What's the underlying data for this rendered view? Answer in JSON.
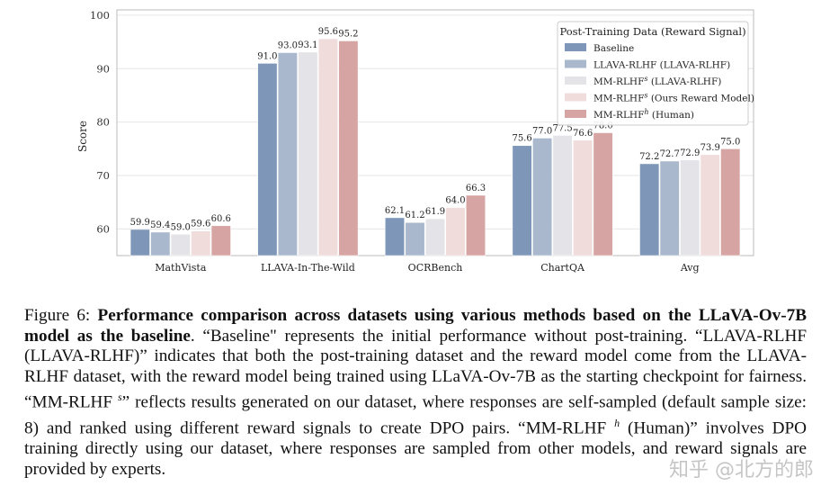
{
  "chart_data": {
    "type": "bar",
    "categories": [
      "MathVista",
      "LLAVA-In-The-Wild",
      "OCRBench",
      "ChartQA",
      "Avg"
    ],
    "ylabel": "Score",
    "xlabel": "",
    "ylim": [
      55,
      101
    ],
    "yticks": [
      60,
      70,
      80,
      90,
      100
    ],
    "grid": true,
    "legend_title": "Post-Training Data (Reward Signal)",
    "legend_position": "top-right",
    "series": [
      {
        "name": "Baseline",
        "color": "#7e97b9",
        "values": [
          59.9,
          91.0,
          62.1,
          75.6,
          72.2
        ]
      },
      {
        "name": "LLAVA-RLHF (LLAVA-RLHF)",
        "color": "#a9b8cd",
        "values": [
          59.4,
          93.0,
          61.2,
          77.0,
          72.7
        ]
      },
      {
        "name": "MM-RLHF^s (LLAVA-RLHF)",
        "color": "#e3e3e8",
        "values": [
          59.0,
          93.1,
          61.9,
          77.5,
          72.9
        ]
      },
      {
        "name": "MM-RLHF^s (Ours Reward Model)",
        "color": "#f0dcdb",
        "values": [
          59.6,
          95.6,
          64.0,
          76.6,
          73.9
        ]
      },
      {
        "name": "MM-RLHF^h (Human)",
        "color": "#d5a4a3",
        "values": [
          60.6,
          95.2,
          66.3,
          78.0,
          75.0
        ]
      }
    ],
    "data_labels": [
      [
        "59.9",
        "91.0",
        "62.1",
        "75.6",
        "72.2"
      ],
      [
        "59.4",
        "93.0",
        "61.2",
        "77.0",
        "72.7"
      ],
      [
        "59.0",
        "93.1",
        "61.9",
        "77.5",
        "72.9"
      ],
      [
        "59.6",
        "95.6",
        "64.0",
        "76.6",
        "73.9"
      ],
      [
        "60.6",
        "95.2",
        "66.3",
        "78.0",
        "75.0"
      ]
    ],
    "legend_labels": [
      {
        "main": "Baseline",
        "sup": "",
        "rest": ""
      },
      {
        "main": "LLAVA-RLHF (LLAVA-RLHF)",
        "sup": "",
        "rest": ""
      },
      {
        "main": "MM-RLHF",
        "sup": "s",
        "rest": " (LLAVA-RLHF)"
      },
      {
        "main": "MM-RLHF",
        "sup": "s",
        "rest": " (Ours Reward Model)"
      },
      {
        "main": "MM-RLHF",
        "sup": "h",
        "rest": " (Human)"
      }
    ]
  },
  "caption": {
    "prefix": "Figure 6: ",
    "bold": "Performance comparison across datasets using various methods based on the LLaVA-Ov-7B model as the baseline",
    "body_1": ". “Baseline\" represents the initial performance without post-training. “LLAVA-RLHF (LLAVA-RLHF)” indicates that both the post-training dataset and the reward model come from the LLAVA-RLHF dataset, with the reward model being trained using LLaVA-Ov-7B as the starting checkpoint for fairness. “MM-RLHF ",
    "sup_s": "s",
    "body_2": "” reflects results generated on our dataset, where responses are self-sampled (default sample size: 8) and ranked using different reward signals to create DPO pairs. “MM-RLHF ",
    "sup_h": "h",
    "body_3": " (Human)” involves DPO training directly using our dataset, where responses are sampled from other models, and reward signals are provided by experts."
  },
  "watermark": "知乎 @北方的郎"
}
